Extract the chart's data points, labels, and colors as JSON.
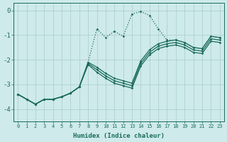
{
  "xlabel": "Humidex (Indice chaleur)",
  "background_color": "#ceeaea",
  "grid_color": "#afd0d0",
  "line_color": "#1a6b5a",
  "xlim": [
    -0.5,
    23.5
  ],
  "ylim": [
    -4.5,
    0.3
  ],
  "yticks": [
    0,
    -1,
    -2,
    -3,
    -4
  ],
  "xticks": [
    0,
    1,
    2,
    3,
    4,
    5,
    6,
    7,
    8,
    9,
    10,
    11,
    12,
    13,
    14,
    15,
    16,
    17,
    18,
    19,
    20,
    21,
    22,
    23
  ],
  "series": [
    {
      "x": [
        0,
        1,
        2,
        3,
        4,
        5,
        6,
        7,
        8,
        9,
        10,
        11,
        12,
        13,
        14,
        15,
        16,
        17,
        18,
        19,
        20,
        21,
        22,
        23
      ],
      "y": [
        -3.4,
        -3.6,
        -3.8,
        -3.6,
        -3.6,
        -3.5,
        -3.35,
        -3.1,
        -2.1,
        -0.75,
        -1.1,
        -0.85,
        -1.05,
        -0.15,
        -0.05,
        -0.2,
        -0.75,
        -1.2,
        -1.2,
        -1.3,
        -1.5,
        -1.55,
        -1.05,
        -1.1
      ],
      "style": "dotted"
    },
    {
      "x": [
        0,
        1,
        2,
        3,
        4,
        5,
        6,
        7,
        8,
        9,
        10,
        11,
        12,
        13,
        14,
        15,
        16,
        17,
        18,
        19,
        20,
        21,
        22,
        23
      ],
      "y": [
        -3.4,
        -3.6,
        -3.8,
        -3.6,
        -3.6,
        -3.5,
        -3.35,
        -3.1,
        -2.1,
        -2.3,
        -2.55,
        -2.75,
        -2.85,
        -2.95,
        -2.05,
        -1.6,
        -1.35,
        -1.25,
        -1.2,
        -1.3,
        -1.5,
        -1.55,
        -1.05,
        -1.1
      ],
      "style": "solid"
    },
    {
      "x": [
        0,
        1,
        2,
        3,
        4,
        5,
        6,
        7,
        8,
        9,
        10,
        11,
        12,
        13,
        14,
        15,
        16,
        17,
        18,
        19,
        20,
        21,
        22,
        23
      ],
      "y": [
        -3.4,
        -3.6,
        -3.8,
        -3.6,
        -3.6,
        -3.5,
        -3.35,
        -3.1,
        -2.15,
        -2.4,
        -2.65,
        -2.85,
        -2.95,
        -3.05,
        -2.15,
        -1.7,
        -1.45,
        -1.35,
        -1.3,
        -1.4,
        -1.6,
        -1.65,
        -1.15,
        -1.2
      ],
      "style": "solid"
    },
    {
      "x": [
        0,
        1,
        2,
        3,
        4,
        5,
        6,
        7,
        8,
        9,
        10,
        11,
        12,
        13,
        14,
        15,
        16,
        17,
        18,
        19,
        20,
        21,
        22,
        23
      ],
      "y": [
        -3.4,
        -3.6,
        -3.8,
        -3.6,
        -3.6,
        -3.5,
        -3.35,
        -3.1,
        -2.2,
        -2.5,
        -2.75,
        -2.95,
        -3.05,
        -3.15,
        -2.25,
        -1.8,
        -1.55,
        -1.45,
        -1.4,
        -1.5,
        -1.7,
        -1.75,
        -1.25,
        -1.3
      ],
      "style": "solid"
    }
  ]
}
